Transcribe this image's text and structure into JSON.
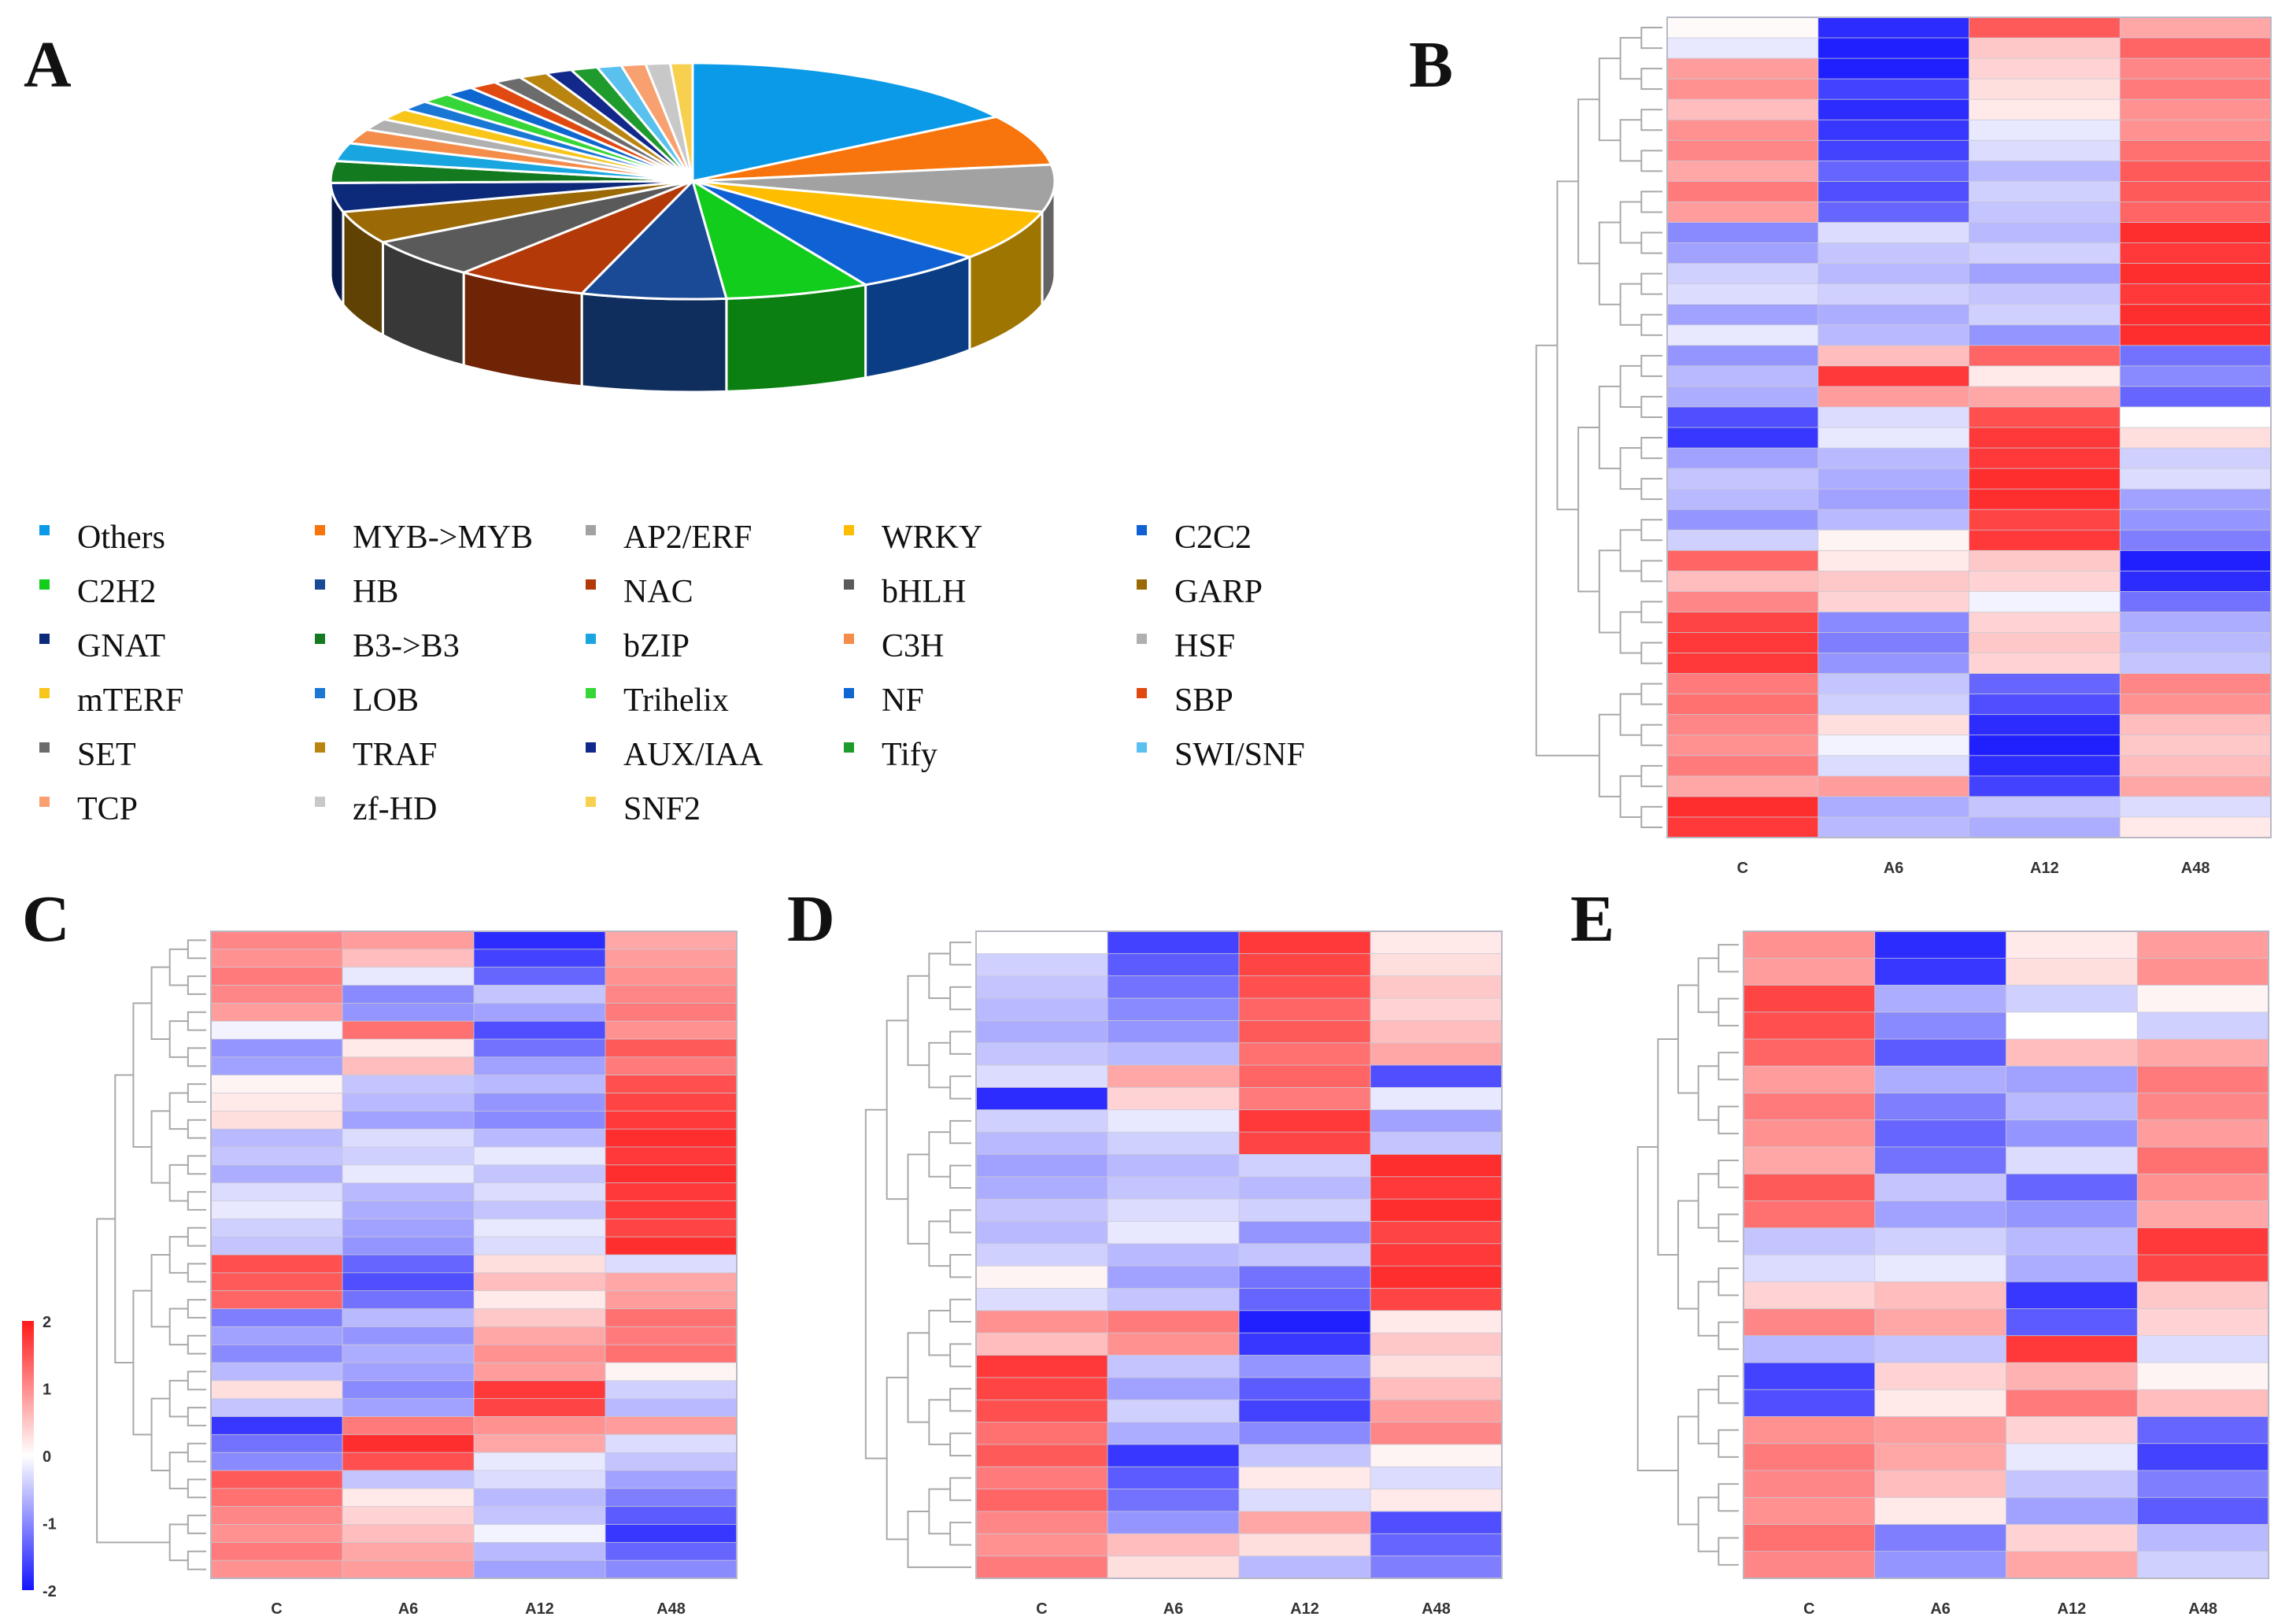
{
  "panels": {
    "a": "A",
    "b": "B",
    "c": "C",
    "d": "D",
    "e": "E"
  },
  "chart_data": [
    {
      "type": "pie",
      "panel": "A",
      "title": "",
      "legend": "bottom",
      "labels": [
        "Others",
        "MYB->MYB",
        "AP2/ERF",
        "WRKY",
        "C2C2",
        "C2H2",
        "HB",
        "NAC",
        "bHLH",
        "GARP",
        "GNAT",
        "B3->B3",
        "bZIP",
        "C3H",
        "HSF",
        "mTERF",
        "LOB",
        "Trihelix",
        "NF",
        "SBP",
        "SET",
        "TRAF",
        "AUX/IAA",
        "Tify",
        "SWI/SNF",
        "TCP",
        "zf-HD",
        "SNF2"
      ],
      "values": [
        16.0,
        7.0,
        6.5,
        7.0,
        6.0,
        6.5,
        6.5,
        6.0,
        5.5,
        4.5,
        4.0,
        3.0,
        2.5,
        2.0,
        1.6,
        1.6,
        1.4,
        1.4,
        1.4,
        1.3,
        1.3,
        1.3,
        1.2,
        1.2,
        1.1,
        1.1,
        1.1,
        1.0
      ],
      "colors": [
        "#0a9ae8",
        "#f7750c",
        "#a2a2a2",
        "#ffbd00",
        "#1062d4",
        "#12cd1c",
        "#1a4a96",
        "#b33a08",
        "#5a5a5a",
        "#9b6a07",
        "#0d2a7a",
        "#147a20",
        "#19a6e0",
        "#f48c4a",
        "#b0b0b0",
        "#f8c51a",
        "#1a78d4",
        "#37d638",
        "#0e66d0",
        "#e04a10",
        "#6c6c6c",
        "#b98510",
        "#12288a",
        "#1f9a2c",
        "#5ac0ee",
        "#f8a070",
        "#c8c8c8",
        "#f8d050"
      ]
    },
    {
      "type": "heatmap",
      "panel": "B",
      "columns": [
        "C",
        "A6",
        "A12",
        "A48"
      ],
      "colorbar": {
        "range": [
          -2,
          2
        ],
        "ticks": [
          "2",
          "1",
          "0",
          "-1",
          "-2"
        ]
      },
      "rows": [
        [
          0.05,
          -1.8,
          1.5,
          0.8
        ],
        [
          -0.2,
          -1.9,
          0.5,
          1.4
        ],
        [
          0.9,
          -1.9,
          0.4,
          1.1
        ],
        [
          1.0,
          -1.6,
          0.3,
          1.2
        ],
        [
          0.6,
          -1.8,
          0.2,
          1.0
        ],
        [
          1.0,
          -1.7,
          -0.2,
          1.0
        ],
        [
          1.1,
          -1.6,
          -0.3,
          1.3
        ],
        [
          0.8,
          -1.3,
          -0.6,
          1.5
        ],
        [
          1.2,
          -1.5,
          -0.4,
          1.5
        ],
        [
          0.9,
          -1.3,
          -0.5,
          1.4
        ],
        [
          -1.0,
          -0.3,
          -0.6,
          1.9
        ],
        [
          -0.8,
          -0.5,
          -0.4,
          1.8
        ],
        [
          -0.4,
          -0.6,
          -0.8,
          1.9
        ],
        [
          -0.3,
          -0.4,
          -0.5,
          1.8
        ],
        [
          -0.8,
          -0.7,
          -0.4,
          1.9
        ],
        [
          -0.2,
          -0.6,
          -0.9,
          1.9
        ],
        [
          -0.9,
          0.6,
          1.4,
          -1.2
        ],
        [
          -0.6,
          1.8,
          0.2,
          -1.0
        ],
        [
          -0.7,
          0.9,
          0.8,
          -1.3
        ],
        [
          -1.5,
          -0.3,
          1.6,
          0.0
        ],
        [
          -1.7,
          -0.2,
          1.8,
          0.3
        ],
        [
          -0.8,
          -0.6,
          1.8,
          -0.4
        ],
        [
          -0.5,
          -0.7,
          1.9,
          -0.3
        ],
        [
          -0.6,
          -0.8,
          1.9,
          -0.8
        ],
        [
          -0.9,
          -0.6,
          1.7,
          -0.9
        ],
        [
          -0.4,
          0.1,
          1.8,
          -1.1
        ],
        [
          1.4,
          0.2,
          0.5,
          -1.9
        ],
        [
          0.6,
          0.5,
          0.4,
          -1.8
        ],
        [
          1.1,
          0.4,
          -0.1,
          -1.2
        ],
        [
          1.7,
          -1.0,
          0.4,
          -0.7
        ],
        [
          1.8,
          -1.1,
          0.5,
          -0.6
        ],
        [
          1.8,
          -0.9,
          0.4,
          -0.5
        ],
        [
          1.2,
          -0.5,
          -1.3,
          1.1
        ],
        [
          1.3,
          -0.4,
          -1.5,
          1.0
        ],
        [
          1.1,
          0.3,
          -1.8,
          0.6
        ],
        [
          1.0,
          -0.1,
          -1.9,
          0.5
        ],
        [
          1.2,
          -0.3,
          -1.8,
          0.6
        ],
        [
          0.8,
          0.9,
          -1.6,
          0.8
        ],
        [
          1.9,
          -0.7,
          -0.5,
          -0.3
        ],
        [
          1.8,
          -0.6,
          -0.7,
          0.2
        ]
      ]
    },
    {
      "type": "heatmap",
      "panel": "C",
      "columns": [
        "C",
        "A6",
        "A12",
        "A48"
      ],
      "rows": [
        [
          1.1,
          0.9,
          -1.8,
          0.8
        ],
        [
          1.0,
          0.6,
          -1.6,
          0.9
        ],
        [
          1.2,
          -0.2,
          -1.3,
          1.0
        ],
        [
          1.1,
          -1.0,
          -0.5,
          1.1
        ],
        [
          0.9,
          -0.9,
          -0.8,
          1.2
        ],
        [
          -0.1,
          1.3,
          -1.5,
          1.0
        ],
        [
          -0.9,
          0.2,
          -1.2,
          1.5
        ],
        [
          -0.8,
          0.6,
          -0.8,
          1.2
        ],
        [
          0.1,
          -0.5,
          -0.6,
          1.6
        ],
        [
          0.2,
          -0.6,
          -0.9,
          1.7
        ],
        [
          0.3,
          -0.8,
          -1.0,
          1.8
        ],
        [
          -0.6,
          -0.3,
          -0.6,
          1.9
        ],
        [
          -0.5,
          -0.4,
          -0.2,
          1.8
        ],
        [
          -0.7,
          -0.2,
          -0.5,
          1.9
        ],
        [
          -0.3,
          -0.6,
          -0.3,
          1.8
        ],
        [
          -0.2,
          -0.7,
          -0.5,
          1.8
        ],
        [
          -0.4,
          -0.8,
          -0.2,
          1.7
        ],
        [
          -0.5,
          -0.9,
          -0.3,
          1.9
        ],
        [
          1.6,
          -1.3,
          0.3,
          -0.3
        ],
        [
          1.5,
          -1.5,
          0.6,
          0.8
        ],
        [
          1.4,
          -1.2,
          0.2,
          0.9
        ],
        [
          -1.1,
          -0.6,
          0.5,
          1.3
        ],
        [
          -0.8,
          -0.9,
          0.8,
          1.2
        ],
        [
          -1.0,
          -0.7,
          1.0,
          1.3
        ],
        [
          -0.6,
          -0.8,
          0.9,
          0.1
        ],
        [
          0.3,
          -1.0,
          1.8,
          -0.4
        ],
        [
          -0.5,
          -0.8,
          1.7,
          -0.6
        ],
        [
          -1.7,
          1.2,
          1.0,
          0.9
        ],
        [
          -1.2,
          1.9,
          0.8,
          -0.3
        ],
        [
          -1.0,
          1.6,
          -0.2,
          -0.5
        ],
        [
          1.5,
          -0.5,
          -0.3,
          -0.8
        ],
        [
          1.3,
          0.2,
          -0.6,
          -1.1
        ],
        [
          1.1,
          0.4,
          -0.5,
          -1.4
        ],
        [
          1.0,
          0.6,
          -0.1,
          -1.7
        ],
        [
          1.2,
          0.8,
          -0.6,
          -1.3
        ],
        [
          1.0,
          0.9,
          -0.8,
          -1.0
        ]
      ]
    },
    {
      "type": "heatmap",
      "panel": "D",
      "columns": [
        "C",
        "A6",
        "A12",
        "A48"
      ],
      "rows": [
        [
          0.0,
          -1.6,
          1.8,
          0.2
        ],
        [
          -0.4,
          -1.4,
          1.7,
          0.3
        ],
        [
          -0.5,
          -1.2,
          1.6,
          0.5
        ],
        [
          -0.6,
          -1.0,
          1.4,
          0.4
        ],
        [
          -0.7,
          -0.9,
          1.5,
          0.6
        ],
        [
          -0.5,
          -0.6,
          1.3,
          0.8
        ],
        [
          -0.3,
          0.8,
          1.4,
          -1.5
        ],
        [
          -1.8,
          0.4,
          1.2,
          -0.2
        ],
        [
          -0.4,
          -0.2,
          1.8,
          -0.8
        ],
        [
          -0.6,
          -0.4,
          1.7,
          -0.5
        ],
        [
          -0.8,
          -0.6,
          -0.4,
          1.9
        ],
        [
          -0.7,
          -0.5,
          -0.6,
          1.8
        ],
        [
          -0.5,
          -0.3,
          -0.4,
          1.9
        ],
        [
          -0.6,
          -0.2,
          -0.9,
          1.7
        ],
        [
          -0.4,
          -0.6,
          -0.5,
          1.8
        ],
        [
          0.1,
          -0.8,
          -1.2,
          1.9
        ],
        [
          -0.3,
          -0.5,
          -1.3,
          1.7
        ],
        [
          1.0,
          1.2,
          -1.9,
          0.2
        ],
        [
          0.6,
          1.0,
          -1.7,
          0.5
        ],
        [
          1.8,
          -0.5,
          -0.9,
          0.3
        ],
        [
          1.7,
          -0.8,
          -1.4,
          0.6
        ],
        [
          1.6,
          -0.4,
          -1.6,
          0.9
        ],
        [
          1.3,
          -0.7,
          -1.0,
          1.1
        ],
        [
          1.5,
          -1.7,
          -0.5,
          0.1
        ],
        [
          1.2,
          -1.4,
          0.2,
          -0.3
        ],
        [
          1.4,
          -1.2,
          -0.3,
          0.2
        ],
        [
          1.1,
          -0.9,
          0.8,
          -1.5
        ],
        [
          1.0,
          0.6,
          0.3,
          -1.3
        ],
        [
          1.2,
          0.3,
          -0.6,
          -1.1
        ]
      ]
    },
    {
      "type": "heatmap",
      "panel": "E",
      "columns": [
        "C",
        "A6",
        "A12",
        "A48"
      ],
      "rows": [
        [
          1.0,
          -1.8,
          0.2,
          0.9
        ],
        [
          0.9,
          -1.7,
          0.3,
          1.0
        ],
        [
          1.7,
          -0.7,
          -0.4,
          0.1
        ],
        [
          1.6,
          -1.0,
          0.0,
          -0.4
        ],
        [
          1.4,
          -1.4,
          0.6,
          0.8
        ],
        [
          0.9,
          -0.7,
          -0.8,
          1.2
        ],
        [
          1.2,
          -1.1,
          -0.6,
          1.1
        ],
        [
          1.0,
          -1.3,
          -0.9,
          0.9
        ],
        [
          0.8,
          -1.2,
          -0.3,
          1.3
        ],
        [
          1.5,
          -0.5,
          -1.3,
          1.0
        ],
        [
          1.3,
          -0.8,
          -0.9,
          0.8
        ],
        [
          -0.5,
          -0.4,
          -0.6,
          1.8
        ],
        [
          -0.3,
          -0.2,
          -0.7,
          1.7
        ],
        [
          0.4,
          0.6,
          -1.7,
          0.5
        ],
        [
          1.1,
          0.8,
          -1.4,
          0.4
        ],
        [
          -0.6,
          -0.5,
          1.8,
          -0.3
        ],
        [
          -1.6,
          0.4,
          0.7,
          0.1
        ],
        [
          -1.5,
          0.2,
          1.2,
          0.6
        ],
        [
          1.0,
          0.9,
          0.4,
          -1.3
        ],
        [
          1.2,
          0.8,
          -0.2,
          -1.6
        ],
        [
          1.1,
          0.6,
          -0.5,
          -1.1
        ],
        [
          1.0,
          0.2,
          -0.8,
          -1.4
        ],
        [
          1.3,
          -1.1,
          0.4,
          -0.6
        ],
        [
          1.1,
          -0.9,
          0.8,
          -0.4
        ]
      ]
    }
  ]
}
